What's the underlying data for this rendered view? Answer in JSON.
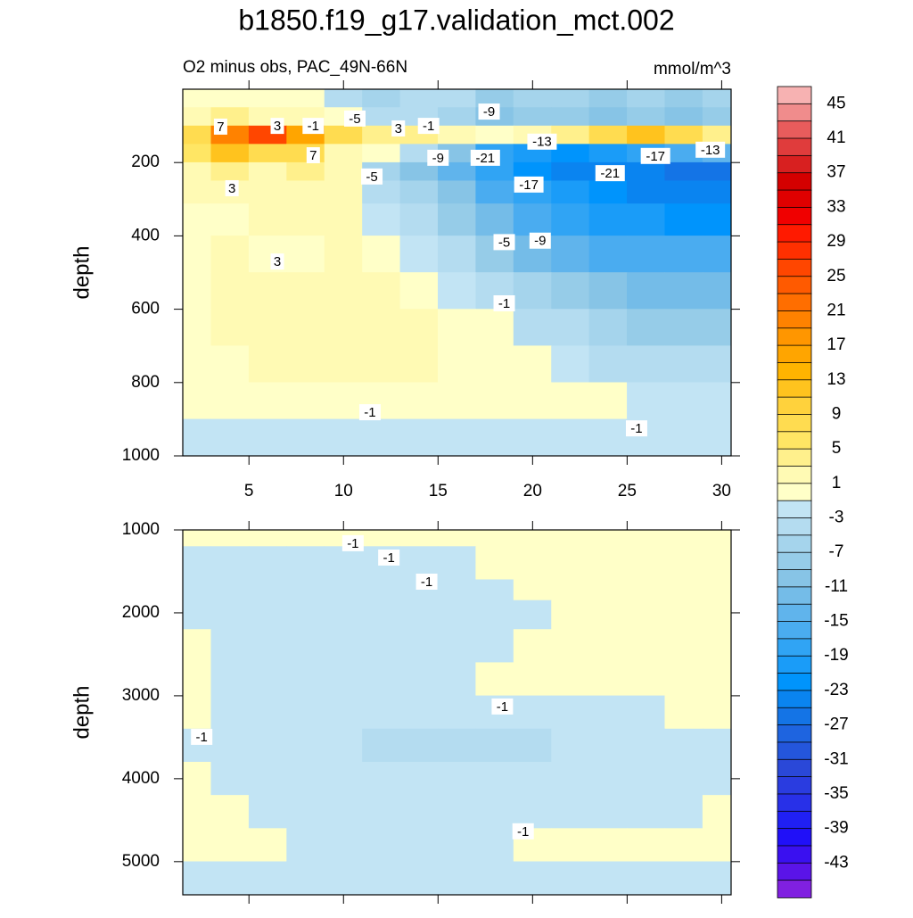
{
  "chart_data": {
    "type": "contour",
    "title": "b1850.f19_g17.validation_mct.002",
    "subtitle": "O2 minus obs, PAC_49N-66N",
    "units": "mmol/m^3",
    "colorbar": {
      "labels": [
        45,
        41,
        37,
        33,
        29,
        25,
        21,
        17,
        13,
        9,
        5,
        1,
        -3,
        -7,
        -11,
        -15,
        -19,
        -23,
        -27,
        -31,
        -35,
        -39,
        -43
      ],
      "top_level": 47,
      "step": 2,
      "colors": [
        "#f7b2b2",
        "#f08c8c",
        "#e85c5c",
        "#e03c3c",
        "#d82020",
        "#d40000",
        "#e00000",
        "#f00000",
        "#ff1a00",
        "#ff3000",
        "#ff4600",
        "#ff5a00",
        "#ff6e00",
        "#ff8200",
        "#ff9600",
        "#ffa500",
        "#ffb400",
        "#ffc31e",
        "#ffd23c",
        "#ffdc50",
        "#ffe664",
        "#fff08c",
        "#fffab4",
        "#ffffc8",
        "#c2e4f4",
        "#b4dcf0",
        "#a5d4ec",
        "#96cce8",
        "#87c4e6",
        "#74bce8",
        "#60b4ec",
        "#4aacf0",
        "#30a4f4",
        "#1a9cf8",
        "#0094fc",
        "#0a84f0",
        "#1474e6",
        "#1e64e0",
        "#2456dc",
        "#2a48d8",
        "#2a3ce0",
        "#2830e8",
        "#2020f4",
        "#2010f8",
        "#3a10f0",
        "#5a14e8",
        "#8020e0"
      ]
    },
    "panels": [
      {
        "ylabel": "depth",
        "xlim": [
          1.5,
          30.5
        ],
        "ylim": [
          0,
          1000
        ],
        "y_reversed": true,
        "xticks": [
          5,
          10,
          15,
          20,
          25,
          30
        ],
        "xtick_labels": true,
        "yticks": [
          200,
          400,
          600,
          800,
          1000
        ],
        "x": [
          2,
          4,
          6,
          8,
          10,
          12,
          14,
          16,
          18,
          20,
          22,
          24,
          26,
          28,
          30
        ],
        "y": [
          25,
          75,
          125,
          175,
          225,
          275,
          350,
          450,
          550,
          650,
          750,
          850,
          950
        ],
        "z": [
          [
            1,
            1,
            1,
            1,
            -3,
            -5,
            -3,
            -3,
            -7,
            -5,
            -5,
            -7,
            -5,
            -7,
            -5
          ],
          [
            3,
            5,
            3,
            3,
            1,
            -3,
            -3,
            -5,
            -9,
            -7,
            -7,
            -9,
            -7,
            -9,
            -7
          ],
          [
            9,
            21,
            27,
            17,
            9,
            5,
            5,
            3,
            1,
            3,
            5,
            9,
            13,
            9,
            5
          ],
          [
            7,
            13,
            9,
            9,
            3,
            1,
            -3,
            -9,
            -17,
            -19,
            -21,
            -19,
            -17,
            -15,
            -13
          ],
          [
            3,
            5,
            3,
            5,
            3,
            -5,
            -9,
            -13,
            -17,
            -21,
            -23,
            -23,
            -23,
            -25,
            -25
          ],
          [
            3,
            3,
            3,
            3,
            3,
            -3,
            -5,
            -9,
            -15,
            -17,
            -19,
            -21,
            -23,
            -23,
            -23
          ],
          [
            1,
            1,
            3,
            3,
            3,
            -1,
            -3,
            -7,
            -11,
            -15,
            -17,
            -19,
            -19,
            -21,
            -21
          ],
          [
            1,
            3,
            1,
            1,
            3,
            1,
            -1,
            -3,
            -7,
            -11,
            -13,
            -15,
            -15,
            -15,
            -15
          ],
          [
            1,
            3,
            3,
            3,
            3,
            3,
            1,
            -1,
            -3,
            -5,
            -7,
            -9,
            -11,
            -11,
            -11
          ],
          [
            1,
            3,
            3,
            3,
            3,
            3,
            3,
            1,
            1,
            -3,
            -3,
            -5,
            -7,
            -7,
            -7
          ],
          [
            1,
            1,
            3,
            3,
            3,
            3,
            3,
            1,
            1,
            1,
            -1,
            -3,
            -3,
            -3,
            -3
          ],
          [
            1,
            1,
            1,
            1,
            1,
            1,
            1,
            1,
            1,
            1,
            1,
            1,
            -1,
            -1,
            -1
          ],
          [
            -1,
            -1,
            -1,
            -1,
            -1,
            -1,
            -1,
            -1,
            -1,
            -1,
            -1,
            -1,
            -1,
            -1,
            -1
          ]
        ],
        "contour_labels": [
          {
            "value": 7,
            "x": 3.5,
            "y": 102
          },
          {
            "value": 3,
            "x": 6.5,
            "y": 100
          },
          {
            "value": -1,
            "x": 8.4,
            "y": 100
          },
          {
            "value": -5,
            "x": 10.6,
            "y": 80
          },
          {
            "value": 3,
            "x": 12.9,
            "y": 107
          },
          {
            "value": -1,
            "x": 14.5,
            "y": 100
          },
          {
            "value": -9,
            "x": 17.7,
            "y": 61
          },
          {
            "value": -13,
            "x": 20.5,
            "y": 143
          },
          {
            "value": -21,
            "x": 17.5,
            "y": 187
          },
          {
            "value": -9,
            "x": 15.0,
            "y": 187
          },
          {
            "value": -5,
            "x": 11.5,
            "y": 238
          },
          {
            "value": 7,
            "x": 8.4,
            "y": 180
          },
          {
            "value": 3,
            "x": 4.1,
            "y": 270
          },
          {
            "value": -17,
            "x": 19.8,
            "y": 260
          },
          {
            "value": -21,
            "x": 24.1,
            "y": 229
          },
          {
            "value": -17,
            "x": 26.5,
            "y": 182
          },
          {
            "value": -13,
            "x": 29.4,
            "y": 165
          },
          {
            "value": -5,
            "x": 18.5,
            "y": 417
          },
          {
            "value": -9,
            "x": 20.4,
            "y": 413
          },
          {
            "value": 3,
            "x": 6.5,
            "y": 470
          },
          {
            "value": -1,
            "x": 18.5,
            "y": 584
          },
          {
            "value": -1,
            "x": 11.4,
            "y": 881
          },
          {
            "value": -1,
            "x": 25.5,
            "y": 925
          }
        ]
      },
      {
        "ylabel": "depth",
        "xlim": [
          1.5,
          30.5
        ],
        "ylim": [
          1000,
          5400
        ],
        "y_reversed": true,
        "xticks": [
          5,
          10,
          15,
          20,
          25,
          30
        ],
        "xtick_labels": false,
        "yticks": [
          1000,
          2000,
          3000,
          4000,
          5000
        ],
        "x": [
          2,
          4,
          6,
          8,
          10,
          12,
          14,
          16,
          18,
          20,
          22,
          24,
          26,
          28,
          30
        ],
        "y": [
          1100,
          1300,
          1500,
          1700,
          2000,
          2400,
          2800,
          3200,
          3600,
          4000,
          4400,
          4800,
          5200
        ],
        "z": [
          [
            1,
            1,
            1,
            1,
            1,
            1,
            1,
            1,
            1,
            1,
            1,
            1,
            1,
            1,
            1
          ],
          [
            -1,
            -1,
            -1,
            -1,
            -1,
            -1,
            -1,
            -1,
            1,
            1,
            1,
            1,
            1,
            1,
            1
          ],
          [
            -1,
            -1,
            -1,
            -1,
            -1,
            -1,
            -1,
            -1,
            1,
            1,
            1,
            1,
            1,
            1,
            1
          ],
          [
            -1,
            -1,
            -1,
            -1,
            -1,
            -1,
            -1,
            -1,
            -1,
            1,
            1,
            1,
            1,
            1,
            1
          ],
          [
            -1,
            -1,
            -1,
            -1,
            -1,
            -1,
            -1,
            -1,
            -1,
            -1,
            1,
            1,
            1,
            1,
            1
          ],
          [
            1,
            -1,
            -1,
            -1,
            -1,
            -1,
            -1,
            -1,
            -1,
            1,
            1,
            1,
            1,
            1,
            1
          ],
          [
            1,
            -1,
            -1,
            -1,
            -1,
            -1,
            -1,
            -1,
            1,
            1,
            1,
            1,
            1,
            1,
            1
          ],
          [
            1,
            -1,
            -1,
            -1,
            -1,
            -1,
            -1,
            -1,
            -1,
            -1,
            -1,
            -1,
            -1,
            1,
            1
          ],
          [
            -1,
            -1,
            -1,
            -1,
            -1,
            -3,
            -3,
            -3,
            -3,
            -3,
            -1,
            -1,
            -1,
            -1,
            -1
          ],
          [
            1,
            -1,
            -1,
            -1,
            -1,
            -1,
            -1,
            -1,
            -1,
            -1,
            -1,
            -1,
            -1,
            -1,
            -1
          ],
          [
            1,
            1,
            -1,
            -1,
            -1,
            -1,
            -1,
            -1,
            -1,
            -1,
            -1,
            -1,
            -1,
            -1,
            1
          ],
          [
            1,
            1,
            1,
            -1,
            -1,
            -1,
            -1,
            -1,
            -1,
            1,
            1,
            1,
            1,
            1,
            1
          ],
          [
            -1,
            -1,
            -1,
            -1,
            -1,
            -1,
            -1,
            -1,
            -1,
            -1,
            -1,
            -1,
            -1,
            -1,
            -1
          ]
        ],
        "contour_labels": [
          {
            "value": -1,
            "x": 10.5,
            "y": 1160
          },
          {
            "value": -1,
            "x": 12.4,
            "y": 1333
          },
          {
            "value": -1,
            "x": 14.4,
            "y": 1624
          },
          {
            "value": -1,
            "x": 18.4,
            "y": 3129
          },
          {
            "value": -1,
            "x": 2.5,
            "y": 3495
          },
          {
            "value": -1,
            "x": 19.5,
            "y": 4634
          }
        ]
      }
    ]
  }
}
